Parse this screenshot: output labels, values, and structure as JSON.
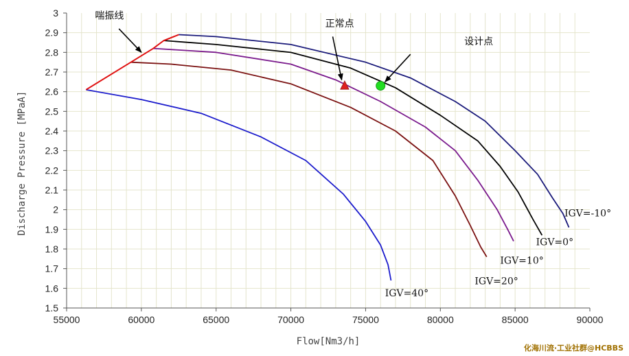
{
  "chart_data": {
    "type": "line",
    "xlabel": "Flow[Nm3/h]",
    "ylabel": "Discharge Pressure [MPaA]",
    "xlim": [
      55000,
      90000
    ],
    "ylim": [
      1.5,
      3.0
    ],
    "x_ticks": [
      55000,
      60000,
      65000,
      70000,
      75000,
      80000,
      85000,
      90000
    ],
    "y_ticks": [
      1.5,
      1.6,
      1.7,
      1.8,
      1.9,
      2.0,
      2.1,
      2.2,
      2.3,
      2.4,
      2.5,
      2.6,
      2.7,
      2.8,
      2.9,
      3.0
    ],
    "y_tick_labels": [
      "1.5",
      "1.6",
      "1.7",
      "1.8",
      "1.9",
      "2",
      "2.1",
      "2.2",
      "2.3",
      "2.4",
      "2.5",
      "2.6",
      "2.7",
      "2.8",
      "2.9",
      "3"
    ],
    "grid": true,
    "series": [
      {
        "name": "IGV=-10°",
        "color": "#1a1a7a",
        "x": [
          62500,
          65000,
          70000,
          75000,
          78000,
          81000,
          83000,
          85000,
          86500,
          87500,
          88200,
          88600
        ],
        "y": [
          2.89,
          2.88,
          2.84,
          2.75,
          2.67,
          2.55,
          2.45,
          2.3,
          2.18,
          2.06,
          1.98,
          1.91
        ]
      },
      {
        "name": "IGV=0°",
        "color": "#000000",
        "x": [
          61500,
          65000,
          70000,
          74000,
          77000,
          80000,
          82500,
          84000,
          85200,
          86200,
          86800
        ],
        "y": [
          2.86,
          2.84,
          2.8,
          2.72,
          2.62,
          2.48,
          2.35,
          2.22,
          2.09,
          1.95,
          1.87
        ]
      },
      {
        "name": "IGV=10°",
        "color": "#7a1a8c",
        "x": [
          60800,
          65000,
          70000,
          73000,
          76000,
          79000,
          81000,
          82500,
          83800,
          84500,
          84900
        ],
        "y": [
          2.82,
          2.8,
          2.74,
          2.66,
          2.55,
          2.42,
          2.3,
          2.15,
          2.0,
          1.9,
          1.84
        ]
      },
      {
        "name": "IGV=20°",
        "color": "#7a1010",
        "x": [
          59300,
          62000,
          66000,
          70000,
          74000,
          77000,
          79500,
          81000,
          82000,
          82700,
          83100
        ],
        "y": [
          2.75,
          2.74,
          2.71,
          2.64,
          2.52,
          2.4,
          2.25,
          2.07,
          1.92,
          1.81,
          1.76
        ]
      },
      {
        "name": "IGV=40°",
        "color": "#1a1acc",
        "x": [
          56300,
          60000,
          64000,
          68000,
          71000,
          73500,
          75000,
          76000,
          76500,
          76700
        ],
        "y": [
          2.61,
          2.56,
          2.49,
          2.37,
          2.25,
          2.08,
          1.94,
          1.82,
          1.72,
          1.64
        ]
      }
    ],
    "surge_line": {
      "name": "喘振线",
      "color": "#e01010",
      "x": [
        56300,
        59300,
        60800,
        61500,
        62500
      ],
      "y": [
        2.61,
        2.75,
        2.82,
        2.86,
        2.89
      ]
    },
    "points": [
      {
        "name": "正常点",
        "x": 73600,
        "y": 2.63,
        "shape": "triangle",
        "color": "#e02020"
      },
      {
        "name": "设计点",
        "x": 76000,
        "y": 2.63,
        "shape": "circle",
        "color": "#22dd22"
      }
    ],
    "series_label_positions": [
      {
        "series": 0,
        "x": 88300,
        "y": 1.965
      },
      {
        "series": 1,
        "x": 86400,
        "y": 1.82
      },
      {
        "series": 2,
        "x": 84000,
        "y": 1.725
      },
      {
        "series": 3,
        "x": 82300,
        "y": 1.62
      },
      {
        "series": 4,
        "x": 76300,
        "y": 1.56
      }
    ],
    "annotations": [
      {
        "text": "喘振线",
        "text_x": 56900,
        "text_y": 2.97,
        "arrow_from": [
          58500,
          2.92
        ],
        "arrow_to": [
          60000,
          2.8
        ]
      },
      {
        "text": "正常点",
        "text_x": 72300,
        "text_y": 2.93,
        "arrow_from": [
          72800,
          2.88
        ],
        "arrow_to": [
          73400,
          2.66
        ]
      },
      {
        "text": "设计点",
        "text_x": 81600,
        "text_y": 2.84,
        "arrow_from": [
          78000,
          2.79
        ],
        "arrow_to": [
          76300,
          2.65
        ]
      }
    ]
  },
  "watermark": "化海川流·工业社群@HCBBS"
}
